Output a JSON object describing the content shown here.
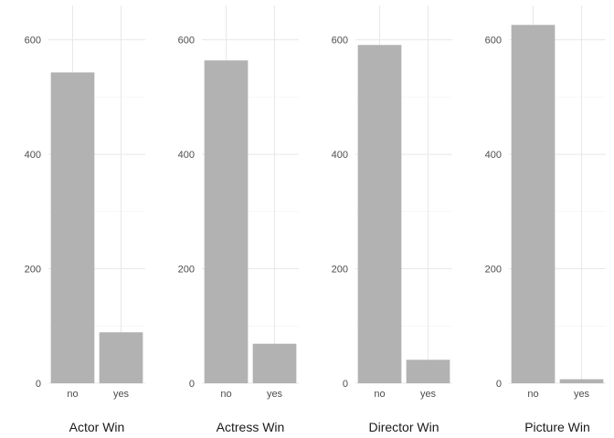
{
  "chart_data": [
    {
      "type": "bar",
      "xlabel": "Actor Win",
      "ylabel": "",
      "categories": [
        "no",
        "yes"
      ],
      "values": [
        543,
        89
      ],
      "ylim": [
        0,
        660
      ],
      "yticks": [
        "0",
        "200",
        "400",
        "600"
      ],
      "grid": true
    },
    {
      "type": "bar",
      "xlabel": "Actress Win",
      "ylabel": "",
      "categories": [
        "no",
        "yes"
      ],
      "values": [
        564,
        69
      ],
      "ylim": [
        0,
        660
      ],
      "yticks": [
        "0",
        "200",
        "400",
        "600"
      ],
      "grid": true
    },
    {
      "type": "bar",
      "xlabel": "Director Win",
      "ylabel": "",
      "categories": [
        "no",
        "yes"
      ],
      "values": [
        591,
        41
      ],
      "ylim": [
        0,
        660
      ],
      "yticks": [
        "0",
        "200",
        "400",
        "600"
      ],
      "grid": true
    },
    {
      "type": "bar",
      "xlabel": "Picture Win",
      "ylabel": "",
      "categories": [
        "no",
        "yes"
      ],
      "values": [
        626,
        7
      ],
      "ylim": [
        0,
        660
      ],
      "yticks": [
        "0",
        "200",
        "400",
        "600"
      ],
      "grid": true
    }
  ],
  "colors": {
    "bar": "#b2b2b2",
    "grid_major": "#e8e8e8",
    "grid_minor": "#f2f2f2"
  }
}
